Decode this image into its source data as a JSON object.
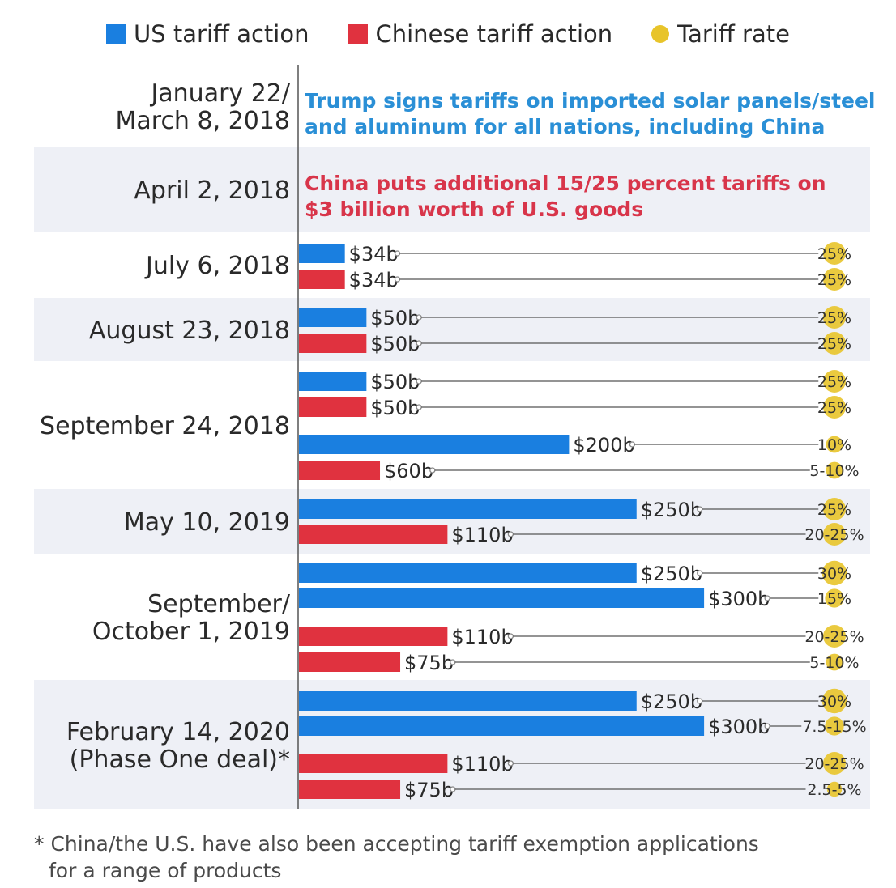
{
  "legend": [
    {
      "label": "US tariff action",
      "color": "#1a7fe0",
      "shape": "square"
    },
    {
      "label": "Chinese tariff action",
      "color": "#e0323f",
      "shape": "square"
    },
    {
      "label": "Tariff rate",
      "color": "#e8c42a",
      "shape": "circle"
    }
  ],
  "colors": {
    "us": "#1a7fe0",
    "china": "#e0323f",
    "rate": "#e8c42a",
    "band": "#eef0f6"
  },
  "chart_data": {
    "type": "bar",
    "orientation": "horizontal",
    "value_unit": "billion USD",
    "xlim": [
      0,
      300
    ],
    "groups": [
      {
        "date": [
          "January 22/",
          "March 8, 2018"
        ],
        "note": [
          "Trump signs tariffs on imported solar panels/steel",
          "and aluminum for all nations, including China"
        ],
        "note_country": "us",
        "bars": []
      },
      {
        "date": [
          "April 2, 2018"
        ],
        "note": [
          "China puts additional 15/25 percent tariffs on",
          "$3 billion worth of U.S. goods"
        ],
        "note_country": "china",
        "bars": []
      },
      {
        "date": [
          "July 6, 2018"
        ],
        "bars": [
          {
            "country": "us",
            "value": 34,
            "label": "$34b",
            "rate": "25%",
            "rate_value": 25
          },
          {
            "country": "china",
            "value": 34,
            "label": "$34b",
            "rate": "25%",
            "rate_value": 25
          }
        ]
      },
      {
        "date": [
          "August 23, 2018"
        ],
        "bars": [
          {
            "country": "us",
            "value": 50,
            "label": "$50b",
            "rate": "25%",
            "rate_value": 25
          },
          {
            "country": "china",
            "value": 50,
            "label": "$50b",
            "rate": "25%",
            "rate_value": 25
          }
        ]
      },
      {
        "date": [
          "September 24, 2018"
        ],
        "bars": [
          {
            "country": "us",
            "value": 50,
            "label": "$50b",
            "rate": "25%",
            "rate_value": 25
          },
          {
            "country": "china",
            "value": 50,
            "label": "$50b",
            "rate": "25%",
            "rate_value": 25
          },
          {
            "country": "us",
            "value": 200,
            "label": "$200b",
            "rate": "10%",
            "rate_value": 10
          },
          {
            "country": "china",
            "value": 60,
            "label": "$60b",
            "rate": "5-10%",
            "rate_value": 10
          }
        ]
      },
      {
        "date": [
          "May 10, 2019"
        ],
        "bars": [
          {
            "country": "us",
            "value": 250,
            "label": "$250b",
            "rate": "25%",
            "rate_value": 25
          },
          {
            "country": "china",
            "value": 110,
            "label": "$110b",
            "rate": "20-25%",
            "rate_value": 25
          }
        ]
      },
      {
        "date": [
          "September/",
          "October 1, 2019"
        ],
        "bars": [
          {
            "country": "us",
            "value": 250,
            "label": "$250b",
            "rate": "30%",
            "rate_value": 30
          },
          {
            "country": "us",
            "value": 300,
            "label": "$300b",
            "rate": "15%",
            "rate_value": 15
          },
          {
            "country": "china",
            "value": 110,
            "label": "$110b",
            "rate": "20-25%",
            "rate_value": 25
          },
          {
            "country": "china",
            "value": 75,
            "label": "$75b",
            "rate": "5-10%",
            "rate_value": 10
          }
        ]
      },
      {
        "date": [
          "February 14, 2020",
          "(Phase One deal)*"
        ],
        "bars": [
          {
            "country": "us",
            "value": 250,
            "label": "$250b",
            "rate": "30%",
            "rate_value": 30
          },
          {
            "country": "us",
            "value": 300,
            "label": "$300b",
            "rate": "7.5-15%",
            "rate_value": 15
          },
          {
            "country": "china",
            "value": 110,
            "label": "$110b",
            "rate": "20-25%",
            "rate_value": 25
          },
          {
            "country": "china",
            "value": 75,
            "label": "$75b",
            "rate": "2.5-5%",
            "rate_value": 5
          }
        ]
      }
    ]
  },
  "footnote": [
    "* China/the U.S. have also been accepting tariff exemption applications",
    "for a range of products"
  ]
}
